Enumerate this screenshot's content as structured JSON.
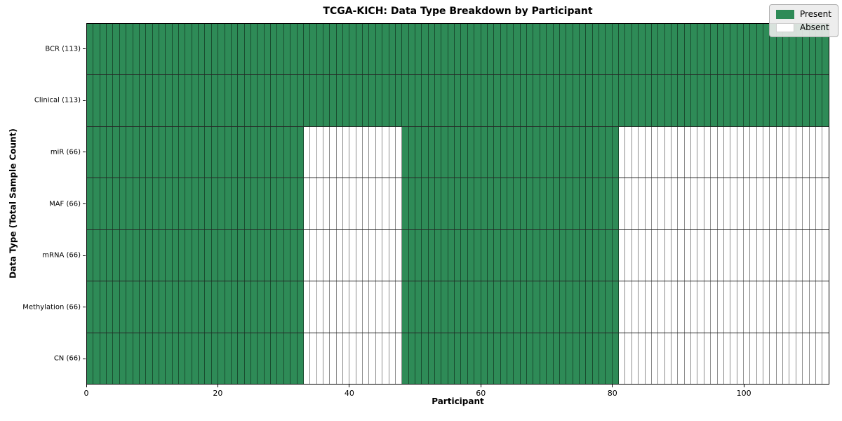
{
  "chart_data": {
    "type": "heatmap",
    "title": "TCGA-KICH: Data Type Breakdown by Participant",
    "xlabel": "Participant",
    "ylabel": "Data Type (Total Sample Count)",
    "x_range": [
      0,
      113
    ],
    "x_ticks": [
      0,
      20,
      40,
      60,
      80,
      100
    ],
    "total_participants": 113,
    "grid": "cell-edges",
    "legend": {
      "position": "upper right",
      "present_label": "Present",
      "absent_label": "Absent"
    },
    "colors": {
      "present": "#2e8b57",
      "absent": "#ffffff"
    },
    "rows": [
      {
        "label": "BCR (113)",
        "data_type": "BCR",
        "sample_count": 113,
        "present_ranges": [
          [
            0,
            113
          ]
        ]
      },
      {
        "label": "Clinical (113)",
        "data_type": "Clinical",
        "sample_count": 113,
        "present_ranges": [
          [
            0,
            113
          ]
        ]
      },
      {
        "label": "miR (66)",
        "data_type": "miR",
        "sample_count": 66,
        "present_ranges": [
          [
            0,
            33
          ],
          [
            48,
            81
          ]
        ]
      },
      {
        "label": "MAF (66)",
        "data_type": "MAF",
        "sample_count": 66,
        "present_ranges": [
          [
            0,
            33
          ],
          [
            48,
            81
          ]
        ]
      },
      {
        "label": "mRNA (66)",
        "data_type": "mRNA",
        "sample_count": 66,
        "present_ranges": [
          [
            0,
            33
          ],
          [
            48,
            81
          ]
        ]
      },
      {
        "label": "Methylation (66)",
        "data_type": "Methylation",
        "sample_count": 66,
        "present_ranges": [
          [
            0,
            33
          ],
          [
            48,
            81
          ]
        ]
      },
      {
        "label": "CN (66)",
        "data_type": "CN",
        "sample_count": 66,
        "present_ranges": [
          [
            0,
            33
          ],
          [
            48,
            81
          ]
        ]
      }
    ]
  }
}
